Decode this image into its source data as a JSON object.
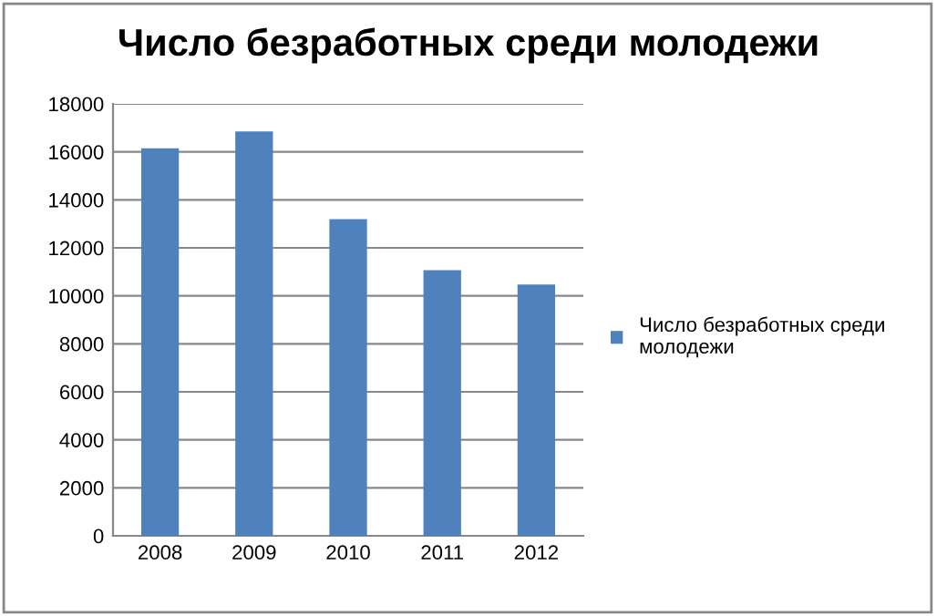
{
  "chart_data": {
    "type": "bar",
    "title": "Число безработных среди молодежи",
    "categories": [
      "2008",
      "2009",
      "2010",
      "2011",
      "2012"
    ],
    "series": [
      {
        "name": "Число безработных среди молодежи",
        "color": "#4f81bd",
        "values": [
          16150,
          16850,
          13200,
          11070,
          10470
        ]
      }
    ],
    "ylim": [
      0,
      18000
    ],
    "yticks": [
      0,
      2000,
      4000,
      6000,
      8000,
      10000,
      12000,
      14000,
      16000,
      18000
    ],
    "grid": "y",
    "legend": "right"
  }
}
